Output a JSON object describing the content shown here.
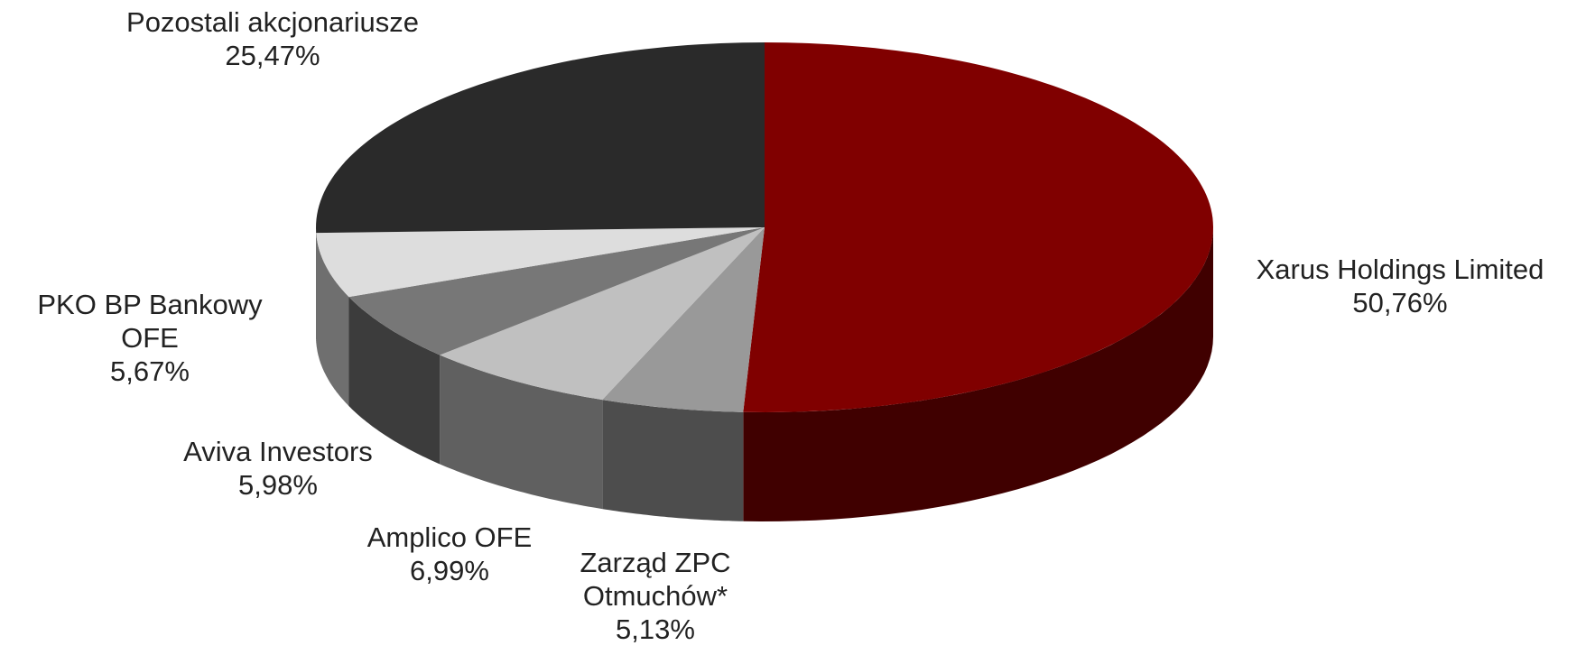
{
  "chart_data": {
    "type": "pie3d",
    "categories": [
      "Xarus Holdings Limited",
      "Zarząd ZPC Otmuchów*",
      "Amplico OFE",
      "Aviva Investors",
      "PKO BP Bankowy OFE",
      "Pozostali akcjonariusze"
    ],
    "values": [
      50.76,
      5.13,
      6.99,
      5.98,
      5.67,
      25.47
    ],
    "value_labels": [
      "50,76%",
      "5,13%",
      "6,99%",
      "5,98%",
      "5,67%",
      "25,47%"
    ],
    "colors": [
      "#800000",
      "#999999",
      "#c0c0c0",
      "#777777",
      "#dddddd",
      "#2a2a2a"
    ]
  }
}
